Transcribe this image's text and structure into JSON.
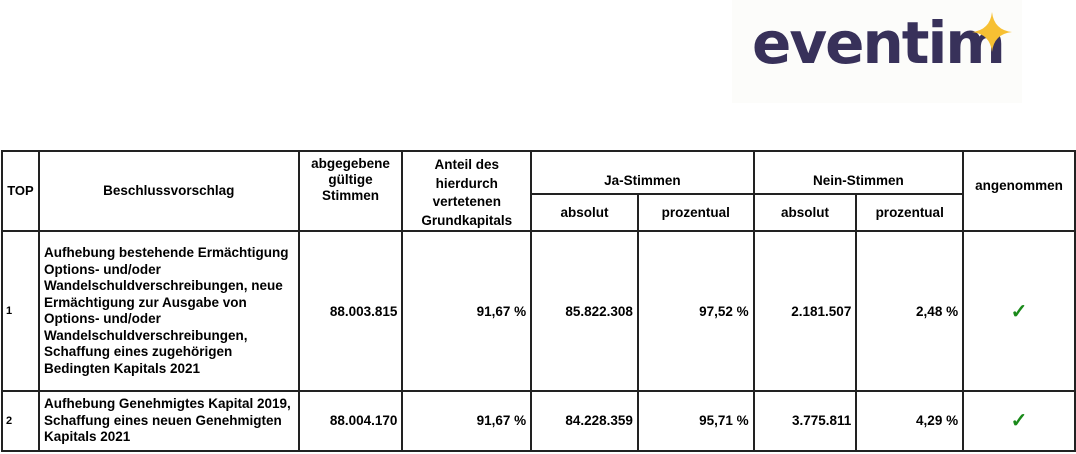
{
  "logo": {
    "text": "eventim",
    "colors": {
      "text": "#38315a",
      "star": "#f7c033"
    }
  },
  "table": {
    "headers": {
      "top": "TOP",
      "proposal": "Beschlussvorschlag",
      "valid_votes": "abgegebene gültige Stimmen",
      "share": "Anteil des hierdurch vertetenen Grundkapitals",
      "yes": "Ja-Stimmen",
      "no": "Nein-Stimmen",
      "accepted": "angenommen",
      "absolute": "absolut",
      "percent": "prozentual"
    },
    "rows": [
      {
        "top": "1",
        "proposal": "Aufhebung bestehende Ermächtigung Options- und/oder Wandelschuldverschreibungen, neue Ermächtigung zur Ausgabe von Options- und/oder Wandelschuldverschreibungen, Schaffung eines zugehörigen Bedingten Kapitals 2021",
        "valid_votes": "88.003.815",
        "share": "91,67 %",
        "yes_abs": "85.822.308",
        "yes_pct": "97,52 %",
        "no_abs": "2.181.507",
        "no_pct": "2,48 %",
        "accepted": "✓"
      },
      {
        "top": "2",
        "proposal": "Aufhebung Genehmigtes Kapital 2019, Schaffung eines neuen Genehmigten Kapitals 2021",
        "valid_votes": "88.004.170",
        "share": "91,67 %",
        "yes_abs": "84.228.359",
        "yes_pct": "95,71 %",
        "no_abs": "3.775.811",
        "no_pct": "4,29 %",
        "accepted": "✓"
      }
    ]
  }
}
